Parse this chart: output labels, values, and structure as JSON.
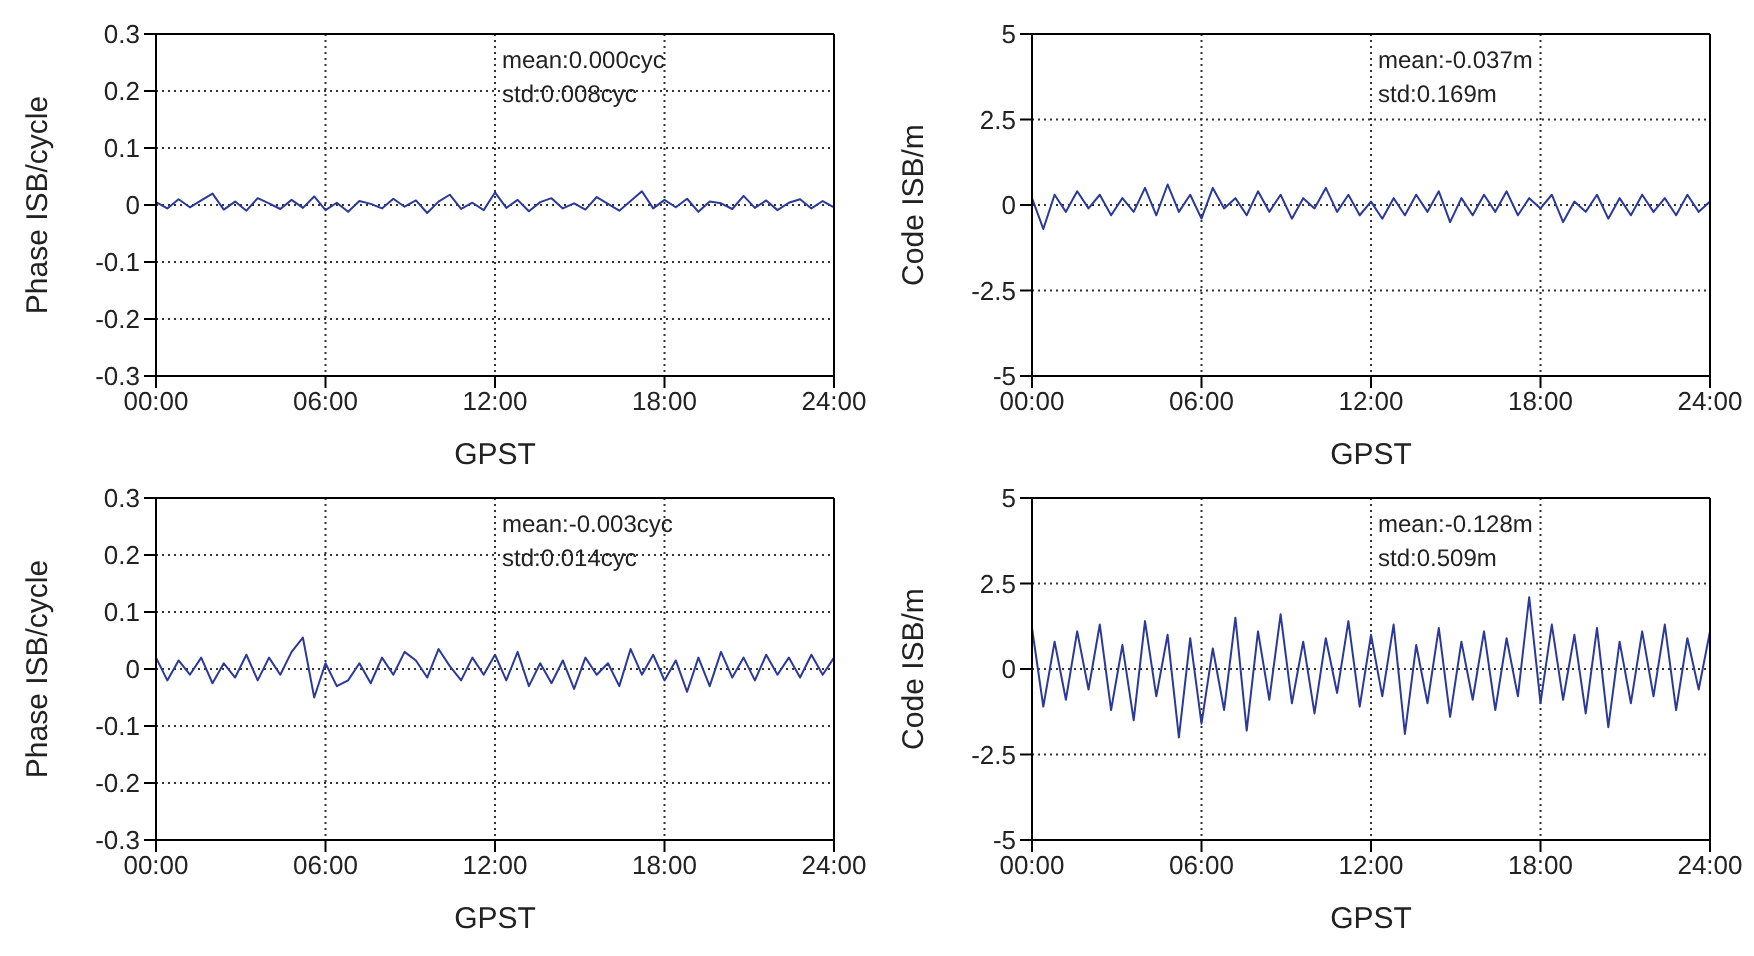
{
  "chart_data": [
    {
      "type": "line",
      "xlabel": "GPST",
      "ylabel": "Phase ISB/cycle",
      "annotations": [
        "mean:0.000cyc",
        "std:0.008cyc"
      ],
      "xlim": [
        0,
        24
      ],
      "xticks": [
        {
          "value": 0,
          "label": "00:00"
        },
        {
          "value": 6,
          "label": "06:00"
        },
        {
          "value": 12,
          "label": "12:00"
        },
        {
          "value": 18,
          "label": "18:00"
        },
        {
          "value": 24,
          "label": "24:00"
        }
      ],
      "ylim": [
        -0.3,
        0.3
      ],
      "yticks": [
        -0.3,
        -0.2,
        -0.1,
        0,
        0.1,
        0.2,
        0.3
      ],
      "grid": true,
      "x": [
        0,
        0.4,
        0.8,
        1.2,
        1.6,
        2,
        2.4,
        2.8,
        3.2,
        3.6,
        4,
        4.4,
        4.8,
        5.2,
        5.6,
        6,
        6.4,
        6.8,
        7.2,
        7.6,
        8,
        8.4,
        8.8,
        9.2,
        9.6,
        10,
        10.4,
        10.8,
        11.2,
        11.6,
        12,
        12.4,
        12.8,
        13.2,
        13.6,
        14,
        14.4,
        14.8,
        15.2,
        15.6,
        16,
        16.4,
        16.8,
        17.2,
        17.6,
        18,
        18.4,
        18.8,
        19.2,
        19.6,
        20,
        20.4,
        20.8,
        21.2,
        21.6,
        22,
        22.4,
        22.8,
        23.2,
        23.6,
        24
      ],
      "series": [
        {
          "color": "#2b3a99",
          "values": [
            0.005,
            -0.006,
            0.01,
            -0.004,
            0.008,
            0.02,
            -0.008,
            0.006,
            -0.01,
            0.012,
            0.003,
            -0.007,
            0.009,
            -0.005,
            0.015,
            -0.009,
            0.004,
            -0.012,
            0.007,
            0.002,
            -0.006,
            0.011,
            -0.003,
            0.008,
            -0.014,
            0.006,
            0.018,
            -0.007,
            0.004,
            -0.009,
            0.022,
            -0.005,
            0.009,
            -0.011,
            0.005,
            0.012,
            -0.006,
            0.003,
            -0.008,
            0.014,
            0.002,
            -0.01,
            0.007,
            0.024,
            -0.006,
            0.009,
            -0.004,
            0.011,
            -0.012,
            0.006,
            0.003,
            -0.007,
            0.016,
            -0.005,
            0.008,
            -0.009,
            0.004,
            0.01,
            -0.006,
            0.007,
            -0.004
          ]
        }
      ]
    },
    {
      "type": "line",
      "xlabel": "GPST",
      "ylabel": "Code ISB/m",
      "annotations": [
        "mean:-0.037m",
        "std:0.169m"
      ],
      "xlim": [
        0,
        24
      ],
      "xticks": [
        {
          "value": 0,
          "label": "00:00"
        },
        {
          "value": 6,
          "label": "06:00"
        },
        {
          "value": 12,
          "label": "12:00"
        },
        {
          "value": 18,
          "label": "18:00"
        },
        {
          "value": 24,
          "label": "24:00"
        }
      ],
      "ylim": [
        -5,
        5
      ],
      "yticks": [
        -5,
        -2.5,
        0,
        2.5,
        5
      ],
      "grid": true,
      "x": [
        0,
        0.4,
        0.8,
        1.2,
        1.6,
        2,
        2.4,
        2.8,
        3.2,
        3.6,
        4,
        4.4,
        4.8,
        5.2,
        5.6,
        6,
        6.4,
        6.8,
        7.2,
        7.6,
        8,
        8.4,
        8.8,
        9.2,
        9.6,
        10,
        10.4,
        10.8,
        11.2,
        11.6,
        12,
        12.4,
        12.8,
        13.2,
        13.6,
        14,
        14.4,
        14.8,
        15.2,
        15.6,
        16,
        16.4,
        16.8,
        17.2,
        17.6,
        18,
        18.4,
        18.8,
        19.2,
        19.6,
        20,
        20.4,
        20.8,
        21.2,
        21.6,
        22,
        22.4,
        22.8,
        23.2,
        23.6,
        24
      ],
      "series": [
        {
          "color": "#2b3a99",
          "values": [
            0.2,
            -0.7,
            0.3,
            -0.2,
            0.4,
            -0.1,
            0.3,
            -0.3,
            0.2,
            -0.2,
            0.5,
            -0.3,
            0.6,
            -0.2,
            0.3,
            -0.4,
            0.5,
            -0.1,
            0.2,
            -0.3,
            0.4,
            -0.2,
            0.3,
            -0.4,
            0.2,
            -0.1,
            0.5,
            -0.2,
            0.3,
            -0.3,
            0.1,
            -0.4,
            0.2,
            -0.3,
            0.3,
            -0.2,
            0.4,
            -0.5,
            0.2,
            -0.3,
            0.3,
            -0.2,
            0.4,
            -0.3,
            0.2,
            -0.1,
            0.3,
            -0.5,
            0.1,
            -0.2,
            0.3,
            -0.4,
            0.2,
            -0.3,
            0.3,
            -0.2,
            0.2,
            -0.3,
            0.3,
            -0.2,
            0.1
          ]
        }
      ]
    },
    {
      "type": "line",
      "xlabel": "GPST",
      "ylabel": "Phase ISB/cycle",
      "annotations": [
        "mean:-0.003cyc",
        "std:0.014cyc"
      ],
      "xlim": [
        0,
        24
      ],
      "xticks": [
        {
          "value": 0,
          "label": "00:00"
        },
        {
          "value": 6,
          "label": "06:00"
        },
        {
          "value": 12,
          "label": "12:00"
        },
        {
          "value": 18,
          "label": "18:00"
        },
        {
          "value": 24,
          "label": "24:00"
        }
      ],
      "ylim": [
        -0.3,
        0.3
      ],
      "yticks": [
        -0.3,
        -0.2,
        -0.1,
        0,
        0.1,
        0.2,
        0.3
      ],
      "grid": true,
      "x": [
        0,
        0.4,
        0.8,
        1.2,
        1.6,
        2,
        2.4,
        2.8,
        3.2,
        3.6,
        4,
        4.4,
        4.8,
        5.2,
        5.6,
        6,
        6.4,
        6.8,
        7.2,
        7.6,
        8,
        8.4,
        8.8,
        9.2,
        9.6,
        10,
        10.4,
        10.8,
        11.2,
        11.6,
        12,
        12.4,
        12.8,
        13.2,
        13.6,
        14,
        14.4,
        14.8,
        15.2,
        15.6,
        16,
        16.4,
        16.8,
        17.2,
        17.6,
        18,
        18.4,
        18.8,
        19.2,
        19.6,
        20,
        20.4,
        20.8,
        21.2,
        21.6,
        22,
        22.4,
        22.8,
        23.2,
        23.6,
        24
      ],
      "series": [
        {
          "color": "#2b3a99",
          "values": [
            0.02,
            -0.02,
            0.015,
            -0.01,
            0.02,
            -0.025,
            0.01,
            -0.015,
            0.025,
            -0.02,
            0.02,
            -0.01,
            0.03,
            0.055,
            -0.05,
            0.01,
            -0.03,
            -0.02,
            0.01,
            -0.025,
            0.02,
            -0.01,
            0.03,
            0.015,
            -0.015,
            0.035,
            0.005,
            -0.02,
            0.02,
            -0.01,
            0.025,
            -0.02,
            0.03,
            -0.03,
            0.01,
            -0.025,
            0.015,
            -0.035,
            0.02,
            -0.01,
            0.01,
            -0.03,
            0.035,
            -0.01,
            0.025,
            -0.02,
            0.015,
            -0.04,
            0.02,
            -0.03,
            0.03,
            -0.015,
            0.02,
            -0.02,
            0.025,
            -0.01,
            0.02,
            -0.015,
            0.025,
            -0.01,
            0.02
          ]
        }
      ]
    },
    {
      "type": "line",
      "xlabel": "GPST",
      "ylabel": "Code ISB/m",
      "annotations": [
        "mean:-0.128m",
        "std:0.509m"
      ],
      "xlim": [
        0,
        24
      ],
      "xticks": [
        {
          "value": 0,
          "label": "00:00"
        },
        {
          "value": 6,
          "label": "06:00"
        },
        {
          "value": 12,
          "label": "12:00"
        },
        {
          "value": 18,
          "label": "18:00"
        },
        {
          "value": 24,
          "label": "24:00"
        }
      ],
      "ylim": [
        -5,
        5
      ],
      "yticks": [
        -5,
        -2.5,
        0,
        2.5,
        5
      ],
      "grid": true,
      "x": [
        0,
        0.4,
        0.8,
        1.2,
        1.6,
        2,
        2.4,
        2.8,
        3.2,
        3.6,
        4,
        4.4,
        4.8,
        5.2,
        5.6,
        6,
        6.4,
        6.8,
        7.2,
        7.6,
        8,
        8.4,
        8.8,
        9.2,
        9.6,
        10,
        10.4,
        10.8,
        11.2,
        11.6,
        12,
        12.4,
        12.8,
        13.2,
        13.6,
        14,
        14.4,
        14.8,
        15.2,
        15.6,
        16,
        16.4,
        16.8,
        17.2,
        17.6,
        18,
        18.4,
        18.8,
        19.2,
        19.6,
        20,
        20.4,
        20.8,
        21.2,
        21.6,
        22,
        22.4,
        22.8,
        23.2,
        23.6,
        24
      ],
      "series": [
        {
          "color": "#2b3a99",
          "values": [
            1.2,
            -1.1,
            0.8,
            -0.9,
            1.1,
            -0.6,
            1.3,
            -1.2,
            0.7,
            -1.5,
            1.4,
            -0.8,
            1.0,
            -2.0,
            0.9,
            -1.6,
            0.6,
            -1.2,
            1.5,
            -1.8,
            1.1,
            -0.9,
            1.6,
            -1.0,
            0.8,
            -1.3,
            0.9,
            -0.7,
            1.4,
            -1.1,
            1.0,
            -0.8,
            1.3,
            -1.9,
            0.7,
            -1.0,
            1.2,
            -1.4,
            0.8,
            -0.9,
            1.1,
            -1.2,
            0.9,
            -0.8,
            2.1,
            -1.0,
            1.3,
            -0.9,
            1.0,
            -1.3,
            1.2,
            -1.7,
            0.8,
            -1.0,
            1.1,
            -0.8,
            1.3,
            -1.2,
            0.9,
            -0.6,
            1.1
          ]
        }
      ]
    }
  ]
}
